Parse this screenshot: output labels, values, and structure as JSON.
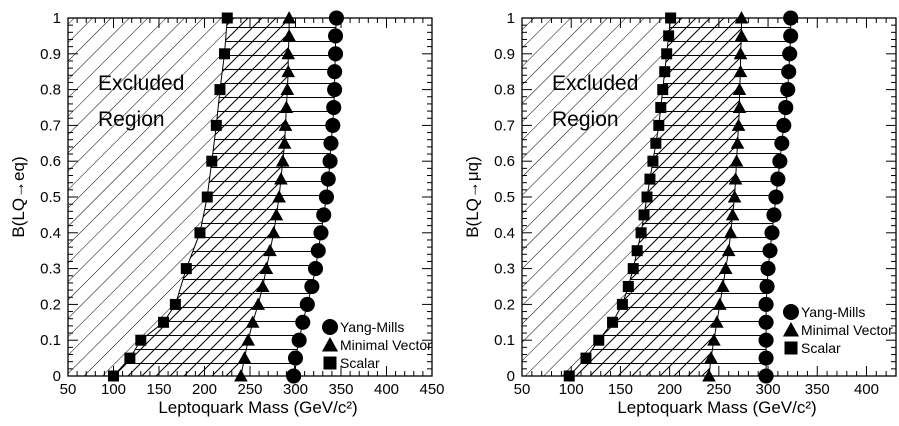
{
  "chart_data": [
    {
      "type": "scatter",
      "title": "",
      "xlabel": "Leptoquark Mass (GeV/c²)",
      "ylabel": "B(LQ→eq)",
      "xlim": [
        50,
        450
      ],
      "ylim": [
        0,
        1
      ],
      "xticks": [
        "50",
        "100",
        "150",
        "200",
        "250",
        "300",
        "350",
        "400",
        "450"
      ],
      "yticks": [
        "0",
        "0.1",
        "0.2",
        "0.3",
        "0.4",
        "0.5",
        "0.6",
        "0.7",
        "0.8",
        "0.9",
        "1"
      ],
      "annotation": [
        "Excluded",
        "Region"
      ],
      "legend_position": "bottom-right",
      "series": [
        {
          "name": "Yang-Mills",
          "marker": "circle",
          "points": [
            [
              298,
              0
            ],
            [
              300,
              0.05
            ],
            [
              304,
              0.1
            ],
            [
              308,
              0.15
            ],
            [
              313,
              0.2
            ],
            [
              318,
              0.25
            ],
            [
              322,
              0.3
            ],
            [
              325,
              0.35
            ],
            [
              328,
              0.4
            ],
            [
              331,
              0.45
            ],
            [
              334,
              0.5
            ],
            [
              336,
              0.55
            ],
            [
              338,
              0.6
            ],
            [
              339,
              0.65
            ],
            [
              341,
              0.7
            ],
            [
              342,
              0.75
            ],
            [
              343,
              0.8
            ],
            [
              343,
              0.85
            ],
            [
              344,
              0.9
            ],
            [
              344,
              0.95
            ],
            [
              345,
              1.0
            ]
          ]
        },
        {
          "name": "Minimal Vector",
          "marker": "triangle",
          "points": [
            [
              240,
              0
            ],
            [
              244,
              0.05
            ],
            [
              248,
              0.1
            ],
            [
              253,
              0.15
            ],
            [
              259,
              0.2
            ],
            [
              264,
              0.25
            ],
            [
              268,
              0.3
            ],
            [
              272,
              0.35
            ],
            [
              276,
              0.4
            ],
            [
              279,
              0.45
            ],
            [
              282,
              0.5
            ],
            [
              284,
              0.55
            ],
            [
              286,
              0.6
            ],
            [
              288,
              0.65
            ],
            [
              289,
              0.7
            ],
            [
              290,
              0.75
            ],
            [
              291,
              0.8
            ],
            [
              292,
              0.85
            ],
            [
              292,
              0.9
            ],
            [
              293,
              0.95
            ],
            [
              293,
              1.0
            ]
          ]
        },
        {
          "name": "Scalar",
          "marker": "square",
          "points": [
            [
              100,
              0
            ],
            [
              118,
              0.05
            ],
            [
              130,
              0.1
            ],
            [
              155,
              0.15
            ],
            [
              168,
              0.2
            ],
            [
              180,
              0.3
            ],
            [
              195,
              0.4
            ],
            [
              203,
              0.5
            ],
            [
              208,
              0.6
            ],
            [
              213,
              0.7
            ],
            [
              217,
              0.8
            ],
            [
              222,
              0.9
            ],
            [
              225,
              1.0
            ]
          ]
        }
      ]
    },
    {
      "type": "scatter",
      "title": "",
      "xlabel": "Leptoquark Mass (GeV/c²)",
      "ylabel": "B(LQ→μq)",
      "xlim": [
        50,
        430
      ],
      "ylim": [
        0,
        1
      ],
      "xticks": [
        "50",
        "100",
        "150",
        "200",
        "250",
        "300",
        "350",
        "400"
      ],
      "yticks": [
        "0",
        "0.1",
        "0.2",
        "0.3",
        "0.4",
        "0.5",
        "0.6",
        "0.7",
        "0.8",
        "0.9",
        "1"
      ],
      "annotation": [
        "Excluded",
        "Region"
      ],
      "legend_position": "bottom-right",
      "series": [
        {
          "name": "Yang-Mills",
          "marker": "circle",
          "points": [
            [
              298,
              0
            ],
            [
              298,
              0.05
            ],
            [
              298,
              0.1
            ],
            [
              298,
              0.15
            ],
            [
              298,
              0.2
            ],
            [
              299,
              0.25
            ],
            [
              300,
              0.3
            ],
            [
              302,
              0.35
            ],
            [
              304,
              0.4
            ],
            [
              306,
              0.45
            ],
            [
              308,
              0.5
            ],
            [
              310,
              0.55
            ],
            [
              312,
              0.6
            ],
            [
              314,
              0.65
            ],
            [
              316,
              0.7
            ],
            [
              318,
              0.75
            ],
            [
              320,
              0.8
            ],
            [
              321,
              0.85
            ],
            [
              322,
              0.9
            ],
            [
              323,
              0.95
            ],
            [
              323,
              1.0
            ]
          ]
        },
        {
          "name": "Minimal Vector",
          "marker": "triangle",
          "points": [
            [
              240,
              0
            ],
            [
              242,
              0.05
            ],
            [
              245,
              0.1
            ],
            [
              248,
              0.15
            ],
            [
              251,
              0.2
            ],
            [
              254,
              0.25
            ],
            [
              257,
              0.3
            ],
            [
              260,
              0.35
            ],
            [
              262,
              0.4
            ],
            [
              264,
              0.45
            ],
            [
              266,
              0.5
            ],
            [
              267,
              0.55
            ],
            [
              268,
              0.6
            ],
            [
              269,
              0.65
            ],
            [
              270,
              0.7
            ],
            [
              271,
              0.75
            ],
            [
              271,
              0.8
            ],
            [
              272,
              0.85
            ],
            [
              272,
              0.9
            ],
            [
              273,
              0.95
            ],
            [
              273,
              1.0
            ]
          ]
        },
        {
          "name": "Scalar",
          "marker": "square",
          "points": [
            [
              98,
              0
            ],
            [
              115,
              0.05
            ],
            [
              128,
              0.1
            ],
            [
              142,
              0.15
            ],
            [
              152,
              0.2
            ],
            [
              158,
              0.25
            ],
            [
              163,
              0.3
            ],
            [
              167,
              0.35
            ],
            [
              171,
              0.4
            ],
            [
              174,
              0.45
            ],
            [
              177,
              0.5
            ],
            [
              180,
              0.55
            ],
            [
              183,
              0.6
            ],
            [
              186,
              0.65
            ],
            [
              189,
              0.7
            ],
            [
              191,
              0.75
            ],
            [
              193,
              0.8
            ],
            [
              195,
              0.85
            ],
            [
              197,
              0.9
            ],
            [
              199,
              0.95
            ],
            [
              201,
              1.0
            ]
          ]
        }
      ]
    }
  ]
}
